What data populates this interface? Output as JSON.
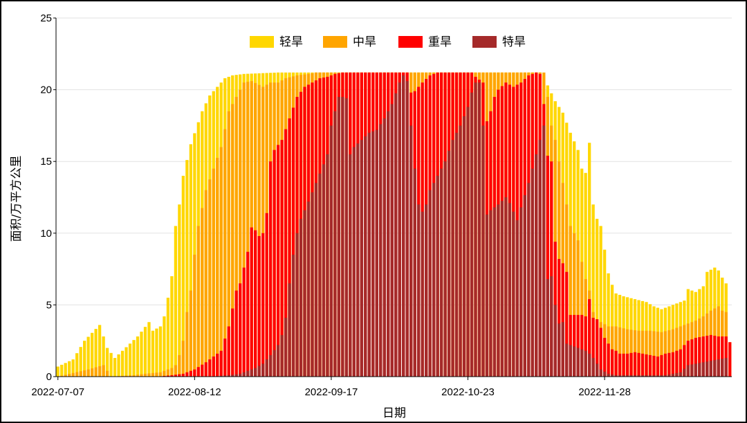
{
  "chart_data": {
    "type": "bar",
    "stacked": true,
    "xlabel": "日期",
    "ylabel": "面积/万平方公里",
    "ylim": [
      0,
      25
    ],
    "yticks": [
      0,
      5,
      10,
      15,
      20,
      25
    ],
    "grid": true,
    "legend_position": "top-center",
    "start_date": "2022-07-07",
    "end_date": "2022-12-31",
    "xtick_labels": [
      "2022-07-07",
      "2022-08-12",
      "2022-09-17",
      "2022-10-23",
      "2022-11-28"
    ],
    "series": [
      {
        "name": "轻旱",
        "color": "#FFD700",
        "keyframes": [
          [
            0,
            0.7
          ],
          [
            4,
            1.2
          ],
          [
            7,
            2.5
          ],
          [
            11,
            3.6
          ],
          [
            13,
            2.0
          ],
          [
            15,
            1.3
          ],
          [
            17,
            1.8
          ],
          [
            21,
            2.8
          ],
          [
            24,
            3.8
          ],
          [
            25,
            3.2
          ],
          [
            27,
            3.5
          ],
          [
            28,
            4.2
          ],
          [
            29,
            5.5
          ],
          [
            30,
            7.0
          ],
          [
            31,
            10.5
          ],
          [
            32,
            12.0
          ],
          [
            33,
            14.0
          ],
          [
            35,
            16.2
          ],
          [
            38,
            18.5
          ],
          [
            40,
            19.6
          ],
          [
            42,
            20.2
          ],
          [
            44,
            20.8
          ],
          [
            46,
            21.0
          ],
          [
            49,
            21.1
          ],
          [
            58,
            21.2
          ],
          [
            127,
            21.2
          ],
          [
            128,
            21.0
          ],
          [
            129,
            20.3
          ],
          [
            131,
            19.2
          ],
          [
            133,
            18.4
          ],
          [
            135,
            17.0
          ],
          [
            137,
            15.8
          ],
          [
            138,
            14.5
          ],
          [
            139,
            14.2
          ],
          [
            140,
            16.3
          ],
          [
            141,
            12.0
          ],
          [
            142,
            11.0
          ],
          [
            143,
            10.5
          ],
          [
            145,
            7.2
          ],
          [
            146,
            6.4
          ],
          [
            147,
            5.8
          ],
          [
            149,
            5.6
          ],
          [
            152,
            5.4
          ],
          [
            155,
            5.2
          ],
          [
            157,
            4.9
          ],
          [
            159,
            4.7
          ],
          [
            161,
            4.9
          ],
          [
            163,
            5.1
          ],
          [
            165,
            5.3
          ],
          [
            166,
            6.1
          ],
          [
            168,
            5.9
          ],
          [
            170,
            6.3
          ],
          [
            171,
            7.3
          ],
          [
            173,
            7.6
          ],
          [
            174,
            7.4
          ],
          [
            175,
            6.9
          ],
          [
            176,
            6.5
          ],
          [
            177,
            2.4
          ],
          [
            178,
            1.5
          ],
          [
            179,
            2.6
          ],
          [
            180,
            2.7
          ],
          [
            181,
            1.8
          ]
        ]
      },
      {
        "name": "中旱",
        "color": "#FFA500",
        "keyframes": [
          [
            0,
            0
          ],
          [
            8,
            0.5
          ],
          [
            12,
            0.8
          ],
          [
            14,
            0
          ],
          [
            20,
            0.1
          ],
          [
            23,
            0.2
          ],
          [
            27,
            0.3
          ],
          [
            29,
            0.5
          ],
          [
            30,
            0.6
          ],
          [
            31,
            0.8
          ],
          [
            32,
            1.5
          ],
          [
            33,
            2.5
          ],
          [
            34,
            4.5
          ],
          [
            35,
            6.0
          ],
          [
            36,
            8.5
          ],
          [
            37,
            10.5
          ],
          [
            39,
            13.0
          ],
          [
            41,
            14.5
          ],
          [
            43,
            16.0
          ],
          [
            45,
            18.5
          ],
          [
            47,
            19.5
          ],
          [
            49,
            20.5
          ],
          [
            51,
            20.6
          ],
          [
            54,
            20.2
          ],
          [
            56,
            20.5
          ],
          [
            58,
            20.5
          ],
          [
            60,
            20.8
          ],
          [
            63,
            21.0
          ],
          [
            66,
            21.1
          ],
          [
            68,
            21.2
          ],
          [
            128,
            21.2
          ],
          [
            129,
            19.5
          ],
          [
            130,
            17.5
          ],
          [
            131,
            16.5
          ],
          [
            132,
            15.0
          ],
          [
            133,
            13.5
          ],
          [
            135,
            10.5
          ],
          [
            137,
            9.5
          ],
          [
            138,
            8.0
          ],
          [
            139,
            6.8
          ],
          [
            140,
            6.0
          ],
          [
            141,
            4.5
          ],
          [
            142,
            4.0
          ],
          [
            143,
            3.8
          ],
          [
            145,
            3.5
          ],
          [
            147,
            3.5
          ],
          [
            150,
            3.3
          ],
          [
            153,
            3.2
          ],
          [
            156,
            3.2
          ],
          [
            159,
            3.1
          ],
          [
            162,
            3.3
          ],
          [
            165,
            3.6
          ],
          [
            168,
            3.9
          ],
          [
            170,
            4.2
          ],
          [
            172,
            4.6
          ],
          [
            174,
            4.9
          ],
          [
            175,
            4.6
          ],
          [
            176,
            4.5
          ],
          [
            177,
            0
          ],
          [
            178,
            0.1
          ],
          [
            180,
            0.1
          ],
          [
            181,
            0
          ]
        ]
      },
      {
        "name": "重旱",
        "color": "#FF0000",
        "keyframes": [
          [
            0,
            0
          ],
          [
            26,
            0
          ],
          [
            30,
            0.1
          ],
          [
            33,
            0.2
          ],
          [
            36,
            0.5
          ],
          [
            39,
            1.0
          ],
          [
            41,
            1.4
          ],
          [
            43,
            1.8
          ],
          [
            45,
            3.5
          ],
          [
            47,
            6.0
          ],
          [
            48,
            6.5
          ],
          [
            50,
            8.7
          ],
          [
            51,
            10.4
          ],
          [
            52,
            10.2
          ],
          [
            53,
            9.8
          ],
          [
            54,
            10.0
          ],
          [
            55,
            11.4
          ],
          [
            56,
            15.0
          ],
          [
            57,
            15.8
          ],
          [
            59,
            16.5
          ],
          [
            61,
            18.0
          ],
          [
            63,
            19.5
          ],
          [
            65,
            20.2
          ],
          [
            67,
            20.5
          ],
          [
            69,
            20.8
          ],
          [
            71,
            20.9
          ],
          [
            73,
            21.1
          ],
          [
            75,
            21.2
          ],
          [
            92,
            21.2
          ],
          [
            93,
            19.8
          ],
          [
            94,
            19.9
          ],
          [
            96,
            20.5
          ],
          [
            98,
            21.0
          ],
          [
            100,
            21.2
          ],
          [
            109,
            21.2
          ],
          [
            110,
            20.9
          ],
          [
            111,
            20.7
          ],
          [
            112,
            20.5
          ],
          [
            113,
            17.8
          ],
          [
            114,
            18.5
          ],
          [
            115,
            19.5
          ],
          [
            116,
            20.0
          ],
          [
            118,
            20.5
          ],
          [
            120,
            20.2
          ],
          [
            122,
            20.5
          ],
          [
            124,
            21.0
          ],
          [
            126,
            21.2
          ],
          [
            127,
            21.1
          ],
          [
            128,
            19.0
          ],
          [
            129,
            15.4
          ],
          [
            130,
            15.0
          ],
          [
            131,
            9.4
          ],
          [
            132,
            8.2
          ],
          [
            133,
            7.9
          ],
          [
            134,
            7.3
          ],
          [
            135,
            4.3
          ],
          [
            137,
            4.3
          ],
          [
            138,
            4.3
          ],
          [
            139,
            4.2
          ],
          [
            140,
            5.4
          ],
          [
            141,
            4.1
          ],
          [
            142,
            4.0
          ],
          [
            143,
            3.4
          ],
          [
            144,
            2.7
          ],
          [
            145,
            2.3
          ],
          [
            146,
            1.9
          ],
          [
            147,
            1.8
          ],
          [
            148,
            1.6
          ],
          [
            150,
            1.6
          ],
          [
            152,
            1.7
          ],
          [
            154,
            1.6
          ],
          [
            156,
            1.5
          ],
          [
            158,
            1.4
          ],
          [
            160,
            1.6
          ],
          [
            162,
            1.7
          ],
          [
            164,
            1.9
          ],
          [
            166,
            2.5
          ],
          [
            168,
            2.7
          ],
          [
            170,
            2.8
          ],
          [
            172,
            2.9
          ],
          [
            174,
            2.8
          ],
          [
            176,
            2.8
          ],
          [
            177,
            2.4
          ],
          [
            178,
            0
          ],
          [
            181,
            0
          ]
        ]
      },
      {
        "name": "特旱",
        "color": "#A52A2A",
        "keyframes": [
          [
            0,
            0
          ],
          [
            40,
            0
          ],
          [
            45,
            0.1
          ],
          [
            48,
            0.2
          ],
          [
            50,
            0.4
          ],
          [
            52,
            0.6
          ],
          [
            54,
            0.9
          ],
          [
            56,
            1.5
          ],
          [
            58,
            2.2
          ],
          [
            59,
            2.9
          ],
          [
            60,
            4.1
          ],
          [
            61,
            6.5
          ],
          [
            62,
            8.5
          ],
          [
            63,
            10.0
          ],
          [
            64,
            11.0
          ],
          [
            66,
            12.2
          ],
          [
            68,
            13.5
          ],
          [
            70,
            14.8
          ],
          [
            71,
            15.5
          ],
          [
            72,
            17.5
          ],
          [
            73,
            18.5
          ],
          [
            74,
            19.5
          ],
          [
            75,
            19.5
          ],
          [
            76,
            19.4
          ],
          [
            77,
            15.5
          ],
          [
            78,
            16.0
          ],
          [
            80,
            16.5
          ],
          [
            82,
            17.0
          ],
          [
            84,
            17.2
          ],
          [
            86,
            18.0
          ],
          [
            88,
            19.0
          ],
          [
            90,
            20.5
          ],
          [
            91,
            21.0
          ],
          [
            92,
            20.6
          ],
          [
            93,
            17.5
          ],
          [
            94,
            14.5
          ],
          [
            95,
            12.0
          ],
          [
            96,
            11.5
          ],
          [
            97,
            12.0
          ],
          [
            98,
            13.0
          ],
          [
            100,
            14.0
          ],
          [
            102,
            15.0
          ],
          [
            104,
            16.5
          ],
          [
            106,
            17.5
          ],
          [
            108,
            18.8
          ],
          [
            109,
            19.8
          ],
          [
            110,
            20.5
          ],
          [
            111,
            20.5
          ],
          [
            112,
            17.5
          ],
          [
            113,
            11.3
          ],
          [
            114,
            11.6
          ],
          [
            116,
            12.0
          ],
          [
            118,
            12.5
          ],
          [
            119,
            12.1
          ],
          [
            120,
            11.5
          ],
          [
            121,
            10.9
          ],
          [
            122,
            11.8
          ],
          [
            124,
            13.5
          ],
          [
            126,
            15.5
          ],
          [
            128,
            17.5
          ],
          [
            129,
            6.8
          ],
          [
            130,
            7.0
          ],
          [
            131,
            5.0
          ],
          [
            132,
            3.7
          ],
          [
            133,
            3.8
          ],
          [
            134,
            2.3
          ],
          [
            135,
            2.2
          ],
          [
            136,
            2.1
          ],
          [
            137,
            2.0
          ],
          [
            138,
            1.9
          ],
          [
            139,
            1.8
          ],
          [
            140,
            1.6
          ],
          [
            141,
            1.3
          ],
          [
            142,
            0.9
          ],
          [
            143,
            0.5
          ],
          [
            145,
            0.2
          ],
          [
            147,
            0.1
          ],
          [
            150,
            0.1
          ],
          [
            155,
            0.1
          ],
          [
            160,
            0.1
          ],
          [
            162,
            0.2
          ],
          [
            164,
            0.3
          ],
          [
            166,
            0.8
          ],
          [
            168,
            0.9
          ],
          [
            170,
            1.0
          ],
          [
            172,
            1.1
          ],
          [
            174,
            1.2
          ],
          [
            176,
            1.3
          ],
          [
            177,
            0
          ],
          [
            181,
            0
          ]
        ]
      }
    ]
  }
}
